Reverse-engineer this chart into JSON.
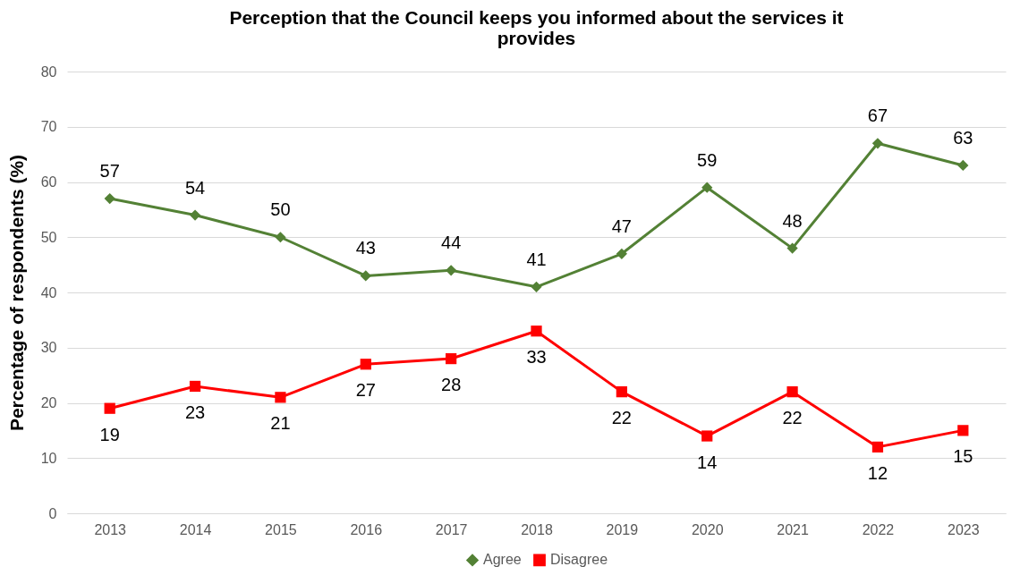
{
  "chart_data": {
    "type": "line",
    "title": "Perception that the Council keeps you informed about the services it provides",
    "ylabel": "Percentage of respondents (%)",
    "categories": [
      "2013",
      "2014",
      "2015",
      "2016",
      "2017",
      "2018",
      "2019",
      "2020",
      "2021",
      "2022",
      "2023"
    ],
    "series": [
      {
        "name": "Agree",
        "color": "#538135",
        "marker": "diamond",
        "values": [
          57,
          54,
          50,
          43,
          44,
          41,
          47,
          59,
          48,
          67,
          63
        ]
      },
      {
        "name": "Disagree",
        "color": "#ff0000",
        "marker": "square",
        "values": [
          19,
          23,
          21,
          27,
          28,
          33,
          22,
          14,
          22,
          12,
          15
        ]
      }
    ],
    "ylim": [
      0,
      80
    ],
    "yticks": [
      0,
      10,
      20,
      30,
      40,
      50,
      60,
      70,
      80
    ],
    "grid": "y",
    "legend": "bottom",
    "data_labels": true
  }
}
